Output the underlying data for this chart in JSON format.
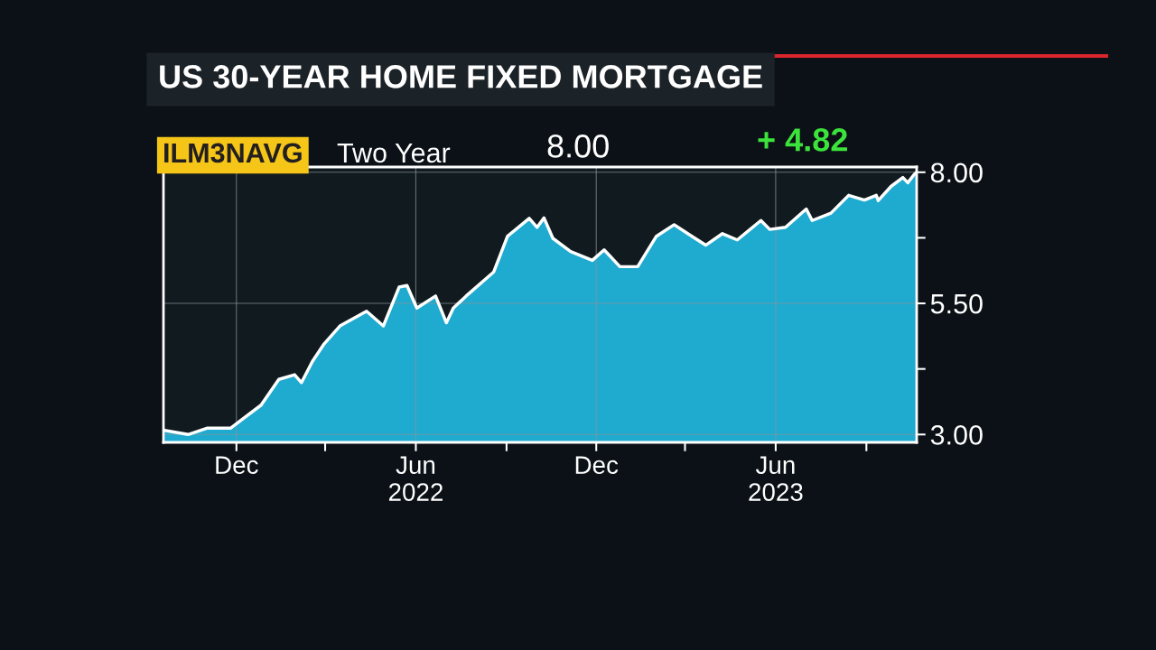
{
  "chart_data": {
    "type": "area",
    "title": "US 30-YEAR HOME FIXED MORTGAGE",
    "annotations": [
      "ILM3NAVG",
      "Two Year",
      "8.00",
      "+ 4.82"
    ],
    "series": [
      {
        "color": "#22c4ee",
        "x": [
          "2021-09-19",
          "2021-10-13",
          "2021-11-01",
          "2021-11-25",
          "2021-12-07",
          "2021-12-26",
          "2022-01-13",
          "2022-01-29",
          "2022-02-05",
          "2022-02-16",
          "2022-02-28",
          "2022-03-16",
          "2022-04-12",
          "2022-04-29",
          "2022-05-15",
          "2022-05-23",
          "2022-06-02",
          "2022-06-21",
          "2022-07-02",
          "2022-07-09",
          "2022-07-22",
          "2022-08-19",
          "2022-09-02",
          "2022-09-24",
          "2022-10-02",
          "2022-10-09",
          "2022-10-18",
          "2022-11-05",
          "2022-11-27",
          "2022-12-09",
          "2022-12-25",
          "2023-01-12",
          "2023-01-31",
          "2023-02-18",
          "2023-03-08",
          "2023-03-22",
          "2023-04-08",
          "2023-04-23",
          "2023-05-17",
          "2023-05-26",
          "2023-06-11",
          "2023-07-02",
          "2023-07-08",
          "2023-07-27",
          "2023-08-14",
          "2023-08-30",
          "2023-09-11",
          "2023-09-13",
          "2023-09-26",
          "2023-10-08",
          "2023-10-13",
          "2023-10-20",
          "2023-10-22"
        ],
        "values": [
          3.08,
          3.0,
          3.12,
          3.12,
          3.29,
          3.56,
          4.05,
          4.14,
          3.99,
          4.39,
          4.73,
          5.07,
          5.35,
          5.07,
          5.81,
          5.84,
          5.41,
          5.64,
          5.13,
          5.41,
          5.64,
          6.1,
          6.78,
          7.12,
          6.95,
          7.13,
          6.74,
          6.49,
          6.32,
          6.52,
          6.2,
          6.2,
          6.78,
          7.0,
          6.78,
          6.61,
          6.83,
          6.71,
          7.08,
          6.91,
          6.95,
          7.3,
          7.08,
          7.22,
          7.56,
          7.47,
          7.56,
          7.46,
          7.73,
          7.9,
          7.8,
          7.97,
          8.0
        ]
      }
    ],
    "xlim": [
      "2021-09-18",
      "2023-10-22"
    ],
    "xticks": [
      {
        "value": "2021-12-01",
        "label": "Dec"
      },
      {
        "value": "2022-03-01",
        "label": null
      },
      {
        "value": "2022-06-01",
        "label": "Jun\n2022"
      },
      {
        "value": "2022-09-01",
        "label": null
      },
      {
        "value": "2022-12-01",
        "label": "Dec"
      },
      {
        "value": "2023-03-01",
        "label": null
      },
      {
        "value": "2023-06-01",
        "label": "Jun\n2023"
      },
      {
        "value": "2023-09-01",
        "label": null
      }
    ],
    "ylim": [
      2.85,
      8.1
    ],
    "yticks": [
      {
        "value": 3.0,
        "label": "3.00"
      },
      {
        "value": 4.25,
        "label": null
      },
      {
        "value": 5.5,
        "label": "5.50"
      },
      {
        "value": 6.75,
        "label": null
      },
      {
        "value": 8.0,
        "label": "8.00"
      }
    ],
    "grid": true
  }
}
